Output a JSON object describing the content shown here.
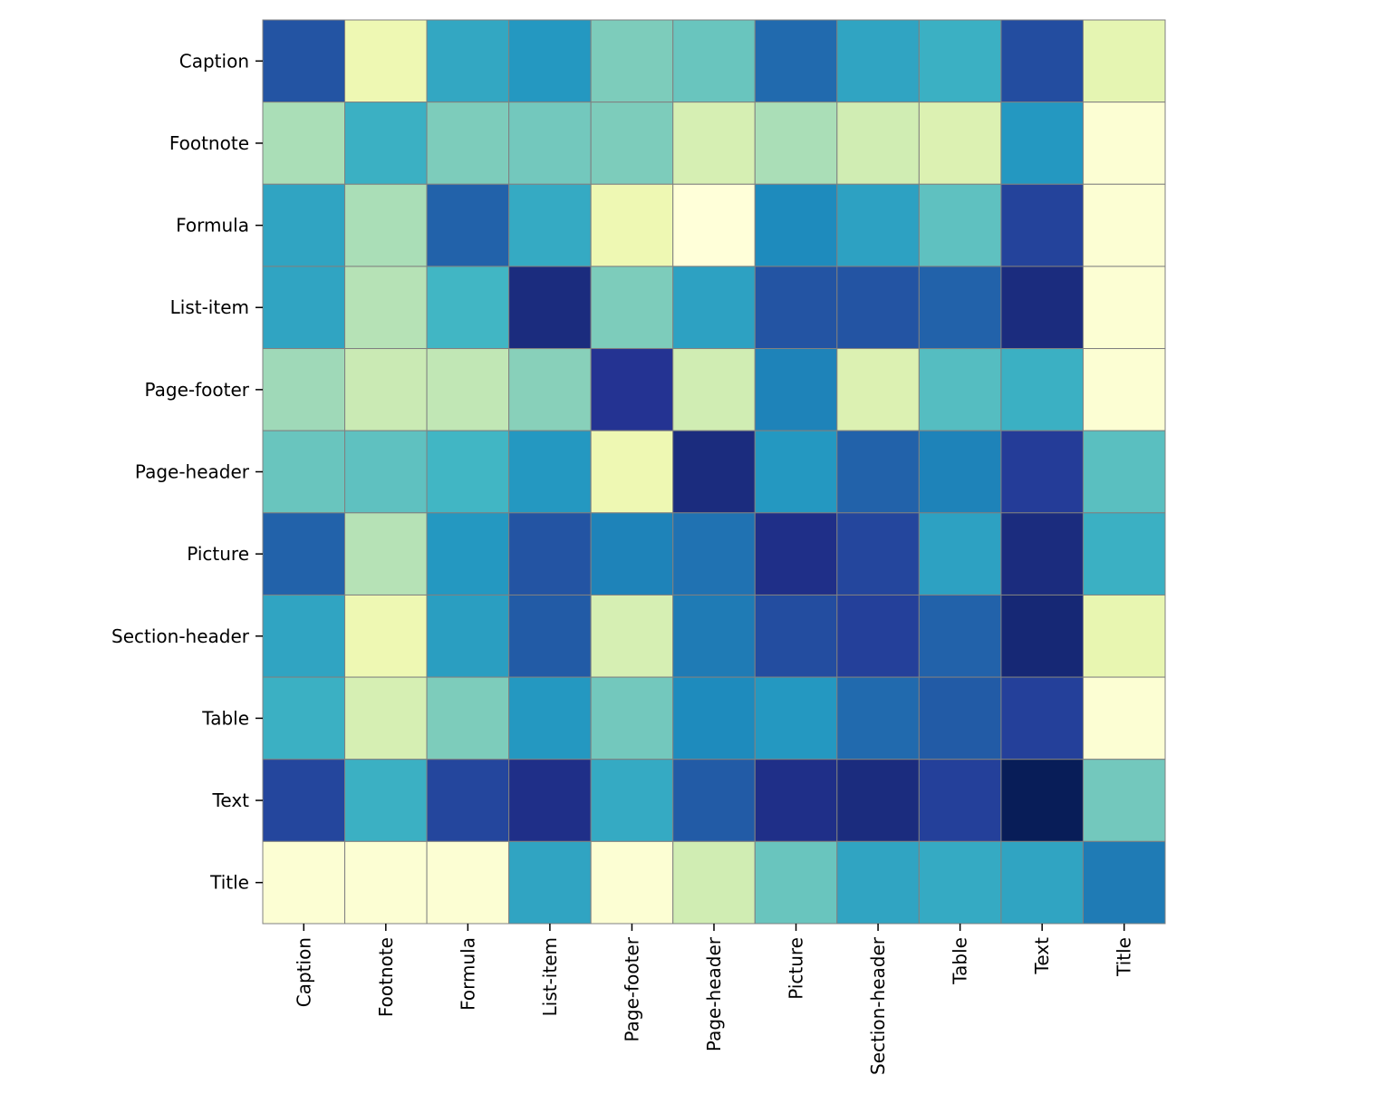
{
  "chart_data": {
    "type": "heatmap",
    "title": "",
    "xlabel": "",
    "ylabel": "",
    "colormap": "YlGnBu",
    "color_range": [
      0,
      1
    ],
    "x_categories": [
      "Caption",
      "Footnote",
      "Formula",
      "List-item",
      "Page-footer",
      "Page-header",
      "Picture",
      "Section-header",
      "Table",
      "Text",
      "Title"
    ],
    "y_categories": [
      "Caption",
      "Footnote",
      "Formula",
      "List-item",
      "Page-footer",
      "Page-header",
      "Picture",
      "Section-header",
      "Table",
      "Text",
      "Title"
    ],
    "values": [
      [
        0.78,
        0.12,
        0.55,
        0.6,
        0.38,
        0.42,
        0.72,
        0.56,
        0.52,
        0.8,
        0.15
      ],
      [
        0.3,
        0.52,
        0.38,
        0.4,
        0.38,
        0.2,
        0.3,
        0.22,
        0.18,
        0.6,
        0.02
      ],
      [
        0.56,
        0.3,
        0.74,
        0.54,
        0.12,
        0.0,
        0.64,
        0.57,
        0.44,
        0.83,
        0.02
      ],
      [
        0.56,
        0.28,
        0.5,
        0.92,
        0.38,
        0.57,
        0.78,
        0.78,
        0.74,
        0.92,
        0.02
      ],
      [
        0.32,
        0.24,
        0.26,
        0.36,
        0.88,
        0.22,
        0.66,
        0.18,
        0.46,
        0.52,
        0.02
      ],
      [
        0.42,
        0.44,
        0.5,
        0.6,
        0.12,
        0.92,
        0.6,
        0.74,
        0.66,
        0.85,
        0.45
      ],
      [
        0.74,
        0.28,
        0.6,
        0.78,
        0.66,
        0.7,
        0.9,
        0.82,
        0.57,
        0.92,
        0.52
      ],
      [
        0.56,
        0.12,
        0.58,
        0.76,
        0.2,
        0.68,
        0.8,
        0.84,
        0.74,
        0.94,
        0.14
      ],
      [
        0.52,
        0.2,
        0.38,
        0.6,
        0.4,
        0.64,
        0.6,
        0.72,
        0.76,
        0.84,
        0.02
      ],
      [
        0.82,
        0.52,
        0.82,
        0.9,
        0.54,
        0.76,
        0.9,
        0.92,
        0.84,
        1.0,
        0.4
      ],
      [
        0.02,
        0.02,
        0.02,
        0.56,
        0.02,
        0.22,
        0.42,
        0.56,
        0.54,
        0.56,
        0.68
      ]
    ]
  }
}
